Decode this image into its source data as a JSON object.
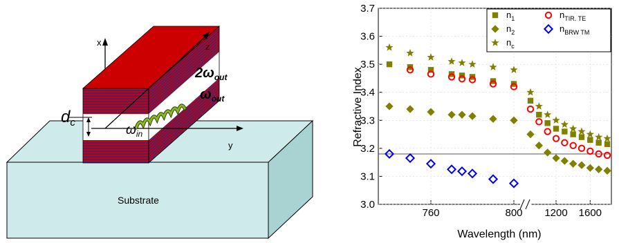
{
  "diagram": {
    "axis_x_label": "x",
    "axis_y_label": "y",
    "axis_z_label": "z",
    "substrate_label": "Substrate",
    "dc_label": "d",
    "dc_sub": "c",
    "win_label": "ω",
    "win_sub": "in",
    "wout_label": "ω",
    "wout_sub": "out",
    "w2out_prefix": "2",
    "w2out_label": "ω",
    "w2out_sub": "out",
    "colors": {
      "top_face": "#cc0000",
      "layer_red": "#cc0000",
      "layer_blue": "#2a2a8a",
      "substrate": "#cfeaea",
      "wave": "#8ab820"
    }
  },
  "chart_data": {
    "type": "scatter",
    "ylabel": "Refractive Index",
    "xlabel": "Wavelength  (nm)",
    "ylim": [
      3.0,
      3.7
    ],
    "yticks": [
      "3.0",
      "3.1",
      "3.2",
      "3.3",
      "3.4",
      "3.5",
      "3.6",
      "3.7"
    ],
    "xticks": [
      "760",
      "800",
      "1200",
      "1600"
    ],
    "reference_line_y": 3.18,
    "axis_break": true,
    "legend_position": "top-right",
    "series": [
      {
        "name": "n1",
        "label_main": "n",
        "label_sub": "1",
        "marker": "square-filled",
        "color": "#808000",
        "x": [
          740,
          750,
          760,
          770,
          775,
          780,
          790,
          800,
          900,
          1000,
          1100,
          1200,
          1300,
          1400,
          1500,
          1600,
          1700,
          1800
        ],
        "y": [
          3.5,
          3.49,
          3.48,
          3.465,
          3.46,
          3.455,
          3.44,
          3.43,
          3.37,
          3.32,
          3.29,
          3.27,
          3.26,
          3.25,
          3.24,
          3.23,
          3.22,
          3.215
        ]
      },
      {
        "name": "n2",
        "label_main": "n",
        "label_sub": "2",
        "marker": "diamond-filled",
        "color": "#808000",
        "x": [
          740,
          750,
          760,
          770,
          775,
          780,
          790,
          800,
          900,
          1000,
          1100,
          1200,
          1300,
          1400,
          1500,
          1600,
          1700,
          1800
        ],
        "y": [
          3.35,
          3.34,
          3.33,
          3.32,
          3.32,
          3.315,
          3.305,
          3.3,
          3.25,
          3.21,
          3.185,
          3.165,
          3.155,
          3.145,
          3.14,
          3.13,
          3.125,
          3.12
        ]
      },
      {
        "name": "nc",
        "label_main": "n",
        "label_sub": "c",
        "marker": "star",
        "color": "#808000",
        "x": [
          740,
          750,
          760,
          770,
          775,
          780,
          790,
          800,
          900,
          1000,
          1100,
          1200,
          1300,
          1400,
          1500,
          1600,
          1700,
          1800
        ],
        "y": [
          3.56,
          3.54,
          3.525,
          3.51,
          3.505,
          3.5,
          3.49,
          3.48,
          3.4,
          3.35,
          3.32,
          3.3,
          3.285,
          3.27,
          3.26,
          3.25,
          3.24,
          3.235
        ]
      },
      {
        "name": "nTIR TE",
        "label_main": "n",
        "label_sub": "TIR. TE",
        "marker": "circle-open",
        "color": "#ff0000",
        "x": [
          750,
          760,
          770,
          775,
          780,
          790,
          800,
          900,
          1000,
          1100,
          1200,
          1300,
          1400,
          1500,
          1600,
          1700,
          1800
        ],
        "y": [
          3.48,
          3.465,
          3.455,
          3.448,
          3.445,
          3.43,
          3.42,
          3.34,
          3.295,
          3.26,
          3.235,
          3.22,
          3.21,
          3.2,
          3.19,
          3.18,
          3.175
        ]
      },
      {
        "name": "nBRW TM",
        "label_main": "n",
        "label_sub": "BRW TM",
        "marker": "diamond-open",
        "color": "#0000ff",
        "x": [
          740,
          750,
          760,
          770,
          775,
          780,
          790,
          800
        ],
        "y": [
          3.18,
          3.165,
          3.145,
          3.125,
          3.118,
          3.11,
          3.09,
          3.075
        ]
      }
    ]
  }
}
